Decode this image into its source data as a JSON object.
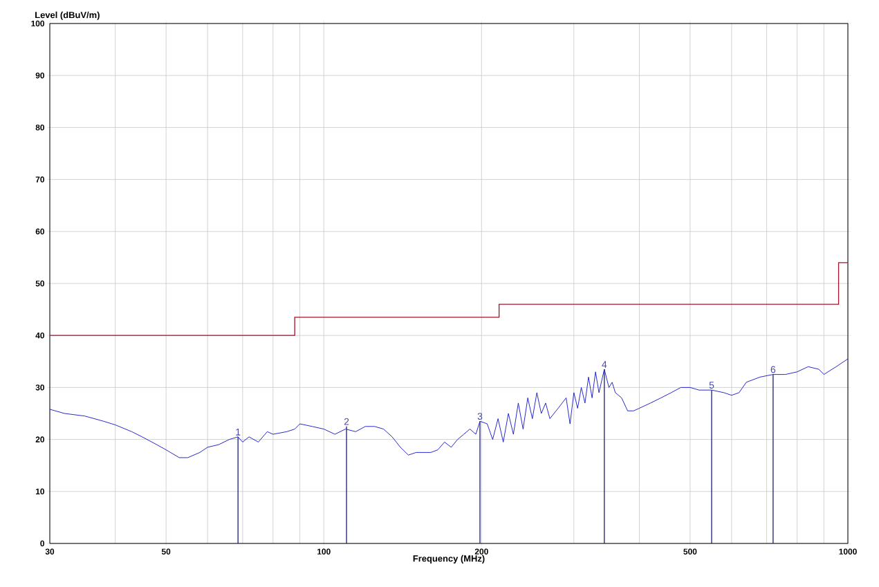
{
  "chart_data": {
    "type": "line",
    "xlabel": "Frequency (MHz)",
    "ylabel": "Level (dBuV/m)",
    "log": "x",
    "xlim": [
      30,
      1000
    ],
    "ylim": [
      0,
      100
    ],
    "xticks": [
      30,
      50,
      100,
      200,
      500,
      1000
    ],
    "yticks": [
      0,
      10,
      20,
      30,
      40,
      50,
      60,
      70,
      80,
      90,
      100
    ],
    "grid": true,
    "marker": "none",
    "line_style": "solid",
    "series": [
      {
        "color": "#1010c8",
        "x": [
          30,
          32,
          35,
          38,
          40,
          43,
          45,
          48,
          50,
          53,
          55,
          58,
          60,
          63,
          66,
          68.6,
          70,
          72,
          75,
          78,
          80,
          85,
          88,
          90,
          95,
          100,
          105,
          110,
          115,
          120,
          125,
          130,
          135,
          140,
          145,
          150,
          160,
          165,
          170,
          175,
          180,
          185,
          190,
          195,
          198.6,
          205,
          210,
          215,
          220,
          225,
          230,
          235,
          240,
          245,
          250,
          255,
          260,
          265,
          270,
          280,
          290,
          295,
          300,
          305,
          310,
          315,
          320,
          325,
          330,
          335,
          343,
          350,
          355,
          360,
          370,
          380,
          390,
          400,
          420,
          440,
          460,
          480,
          500,
          520,
          549.6,
          580,
          600,
          620,
          640,
          680,
          720,
          760,
          800,
          840,
          880,
          900,
          950,
          1000
        ],
        "values": [
          25.8,
          25,
          24.5,
          23.5,
          22.8,
          21.5,
          20.5,
          19,
          18,
          16.5,
          16.5,
          17.5,
          18.5,
          19,
          20,
          20.5,
          19.5,
          20.5,
          19.5,
          21.5,
          21,
          21.5,
          22,
          23,
          22.5,
          22,
          21,
          22,
          21.5,
          22.5,
          22.5,
          22,
          20.5,
          18.5,
          17,
          17.5,
          17.5,
          18,
          19.5,
          18.5,
          20,
          21,
          22,
          21,
          23.5,
          23,
          20,
          24,
          19.5,
          25,
          21,
          27,
          22,
          28,
          24,
          29,
          25,
          27,
          24,
          26,
          28,
          23,
          29,
          26,
          30,
          27,
          32,
          28,
          33,
          29,
          33.5,
          30,
          31,
          29,
          28,
          25.5,
          25.5,
          26,
          27,
          28,
          29,
          30,
          30,
          29.5,
          29.5,
          29,
          28.5,
          29,
          31,
          32,
          32.5,
          32.5,
          33,
          34,
          33.5,
          32.5,
          34,
          35.5
        ]
      },
      {
        "type": "step",
        "color": "#a8102c",
        "x": [
          30,
          88,
          216,
          960,
          1000
        ],
        "values": [
          40,
          43.5,
          46,
          54,
          54
        ]
      },
      {
        "type": "bar",
        "color": "#2a2a80",
        "x": [
          68.6,
          110.5,
          198.6,
          343,
          549.6,
          720
        ],
        "values": [
          20.5,
          22.5,
          23.5,
          33.5,
          29.5,
          32.5
        ]
      }
    ],
    "annotations": [
      {
        "text": "1",
        "x": 68.6,
        "y": 20.5
      },
      {
        "text": "2",
        "x": 110.5,
        "y": 22.5
      },
      {
        "text": "3",
        "x": 198.6,
        "y": 23.5
      },
      {
        "text": "4",
        "x": 343,
        "y": 33.5
      },
      {
        "text": "5",
        "x": 549.6,
        "y": 29.5
      },
      {
        "text": "6",
        "x": 720,
        "y": 32.5
      }
    ]
  }
}
